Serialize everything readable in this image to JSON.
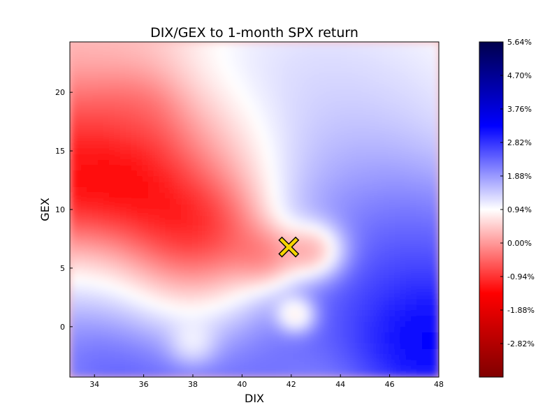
{
  "chart_data": {
    "type": "heatmap",
    "title": "DIX/GEX to 1-month SPX return",
    "xlabel": "DIX",
    "ylabel": "GEX",
    "xlim": [
      33,
      48
    ],
    "ylim": [
      -4.3,
      24.3
    ],
    "x_ticks": [
      34,
      36,
      38,
      40,
      42,
      44,
      46,
      48
    ],
    "y_ticks": [
      0,
      5,
      10,
      15,
      20
    ],
    "colorbar": {
      "colormap": "seismic",
      "range": [
        -3.76,
        5.64
      ],
      "ticks": [
        "5.64%",
        "4.70%",
        "3.76%",
        "2.82%",
        "1.88%",
        "0.94%",
        "0.00%",
        "-0.94%",
        "-1.88%",
        "-2.82%"
      ],
      "tick_values": [
        5.64,
        4.7,
        3.76,
        2.82,
        1.88,
        0.94,
        0.0,
        -0.94,
        -1.88,
        -2.82
      ]
    },
    "grid": false,
    "hotspots": [
      {
        "x": 36.5,
        "y": 9.5,
        "value": -2.4,
        "radius": 2.6
      },
      {
        "x": 34.5,
        "y": 12.5,
        "value": -1.9,
        "radius": 2.2
      },
      {
        "x": 33.5,
        "y": 16.5,
        "value": -1.0,
        "radius": 1.8
      },
      {
        "x": 38.0,
        "y": 8.0,
        "value": -2.0,
        "radius": 1.6
      },
      {
        "x": 35.5,
        "y": 18.0,
        "value": -0.6,
        "radius": 1.0
      },
      {
        "x": 41.0,
        "y": 6.0,
        "value": -1.8,
        "radius": 0.9
      },
      {
        "x": 43.0,
        "y": 6.5,
        "value": -2.6,
        "radius": 0.8
      },
      {
        "x": 42.2,
        "y": 1.0,
        "value": -1.4,
        "radius": 0.5
      },
      {
        "x": 38.0,
        "y": 2.5,
        "value": -0.5,
        "radius": 1.8
      },
      {
        "x": 38.0,
        "y": -1.5,
        "value": -0.4,
        "radius": 0.6
      },
      {
        "x": 35.5,
        "y": -1.5,
        "value": 3.4,
        "radius": 2.8
      },
      {
        "x": 40.0,
        "y": -2.0,
        "value": 3.0,
        "radius": 2.6
      },
      {
        "x": 47.5,
        "y": -1.0,
        "value": 4.6,
        "radius": 1.8
      },
      {
        "x": 46.5,
        "y": 7.0,
        "value": 3.2,
        "radius": 2.6
      },
      {
        "x": 46.0,
        "y": 1.0,
        "value": 3.0,
        "radius": 2.6
      },
      {
        "x": 44.0,
        "y": 12.0,
        "value": 2.2,
        "radius": 2.6
      },
      {
        "x": 42.0,
        "y": 20.0,
        "value": 1.6,
        "radius": 3.2
      },
      {
        "x": 46.5,
        "y": 19.5,
        "value": 1.4,
        "radius": 3.2
      },
      {
        "x": 34.5,
        "y": 5.0,
        "value": 1.5,
        "radius": 1.8
      },
      {
        "x": 33.8,
        "y": 22.5,
        "value": 0.5,
        "radius": 2.0
      },
      {
        "x": 39.0,
        "y": 14.5,
        "value": 0.3,
        "radius": 2.0
      }
    ],
    "marker": {
      "x": 41.9,
      "y": 6.8,
      "shape": "x",
      "color": "#f5d400",
      "edgecolor": "#000000"
    }
  }
}
